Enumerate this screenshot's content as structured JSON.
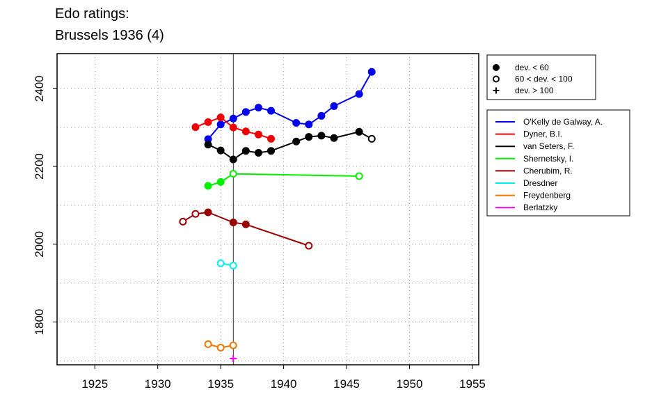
{
  "title_line1": "Edo ratings:",
  "title_line2": "Brussels 1936 (4)",
  "chart_data": {
    "type": "line",
    "title": "Edo ratings: Brussels 1936 (4)",
    "xlim": [
      1922,
      1955.5
    ],
    "ylim": [
      1690,
      2490
    ],
    "x_ticks": [
      1925,
      1930,
      1935,
      1940,
      1945,
      1950,
      1955
    ],
    "y_ticks": [
      1800,
      2000,
      2200,
      2400
    ],
    "grid": true,
    "vertical_line_x": 1936,
    "marker_legend": [
      {
        "marker": "filled",
        "label": "dev. < 60"
      },
      {
        "marker": "open",
        "label": "60 < dev. < 100"
      },
      {
        "marker": "plus",
        "label": "dev. > 100"
      }
    ],
    "series": [
      {
        "name": "O'Kelly de Galway, A.",
        "color": "#0000ee",
        "points": [
          {
            "x": 1934,
            "y": 2270,
            "m": "filled"
          },
          {
            "x": 1935,
            "y": 2308,
            "m": "filled"
          },
          {
            "x": 1936,
            "y": 2323,
            "m": "filled"
          },
          {
            "x": 1937,
            "y": 2340,
            "m": "filled"
          },
          {
            "x": 1938,
            "y": 2351,
            "m": "filled"
          },
          {
            "x": 1939,
            "y": 2343,
            "m": "filled"
          },
          {
            "x": 1941,
            "y": 2312,
            "m": "filled"
          },
          {
            "x": 1942,
            "y": 2308,
            "m": "filled"
          },
          {
            "x": 1943,
            "y": 2330,
            "m": "filled"
          },
          {
            "x": 1944,
            "y": 2355,
            "m": "filled"
          },
          {
            "x": 1946,
            "y": 2386,
            "m": "filled"
          },
          {
            "x": 1947,
            "y": 2443,
            "m": "filled"
          }
        ]
      },
      {
        "name": "Dyner, B.I.",
        "color": "#ee0000",
        "points": [
          {
            "x": 1933,
            "y": 2301,
            "m": "filled"
          },
          {
            "x": 1934,
            "y": 2314,
            "m": "filled"
          },
          {
            "x": 1935,
            "y": 2326,
            "m": "filled"
          },
          {
            "x": 1936,
            "y": 2300,
            "m": "filled"
          },
          {
            "x": 1937,
            "y": 2290,
            "m": "filled"
          },
          {
            "x": 1938,
            "y": 2282,
            "m": "filled"
          },
          {
            "x": 1939,
            "y": 2271,
            "m": "filled"
          }
        ]
      },
      {
        "name": "van Seters, F.",
        "color": "#000000",
        "points": [
          {
            "x": 1934,
            "y": 2256,
            "m": "filled"
          },
          {
            "x": 1935,
            "y": 2241,
            "m": "filled"
          },
          {
            "x": 1936,
            "y": 2218,
            "m": "filled"
          },
          {
            "x": 1937,
            "y": 2240,
            "m": "filled"
          },
          {
            "x": 1938,
            "y": 2235,
            "m": "filled"
          },
          {
            "x": 1939,
            "y": 2240,
            "m": "filled"
          },
          {
            "x": 1941,
            "y": 2264,
            "m": "filled"
          },
          {
            "x": 1942,
            "y": 2276,
            "m": "filled"
          },
          {
            "x": 1943,
            "y": 2279,
            "m": "filled"
          },
          {
            "x": 1944,
            "y": 2273,
            "m": "filled"
          },
          {
            "x": 1946,
            "y": 2289,
            "m": "filled"
          },
          {
            "x": 1947,
            "y": 2271,
            "m": "open"
          }
        ]
      },
      {
        "name": "Shernetsky, I.",
        "color": "#00ee00",
        "points": [
          {
            "x": 1934,
            "y": 2150,
            "m": "filled"
          },
          {
            "x": 1935,
            "y": 2160,
            "m": "filled"
          },
          {
            "x": 1936,
            "y": 2181,
            "m": "open"
          },
          {
            "x": 1946,
            "y": 2175,
            "m": "open"
          }
        ]
      },
      {
        "name": "Cherubim, R.",
        "color": "#990000",
        "points": [
          {
            "x": 1932,
            "y": 2058,
            "m": "open"
          },
          {
            "x": 1933,
            "y": 2078,
            "m": "open"
          },
          {
            "x": 1934,
            "y": 2082,
            "m": "filled"
          },
          {
            "x": 1936,
            "y": 2056,
            "m": "filled"
          },
          {
            "x": 1937,
            "y": 2051,
            "m": "filled"
          },
          {
            "x": 1942,
            "y": 1996,
            "m": "open"
          }
        ]
      },
      {
        "name": "Dresdner",
        "color": "#00eeee",
        "points": [
          {
            "x": 1935,
            "y": 1951,
            "m": "open"
          },
          {
            "x": 1936,
            "y": 1945,
            "m": "open"
          }
        ]
      },
      {
        "name": "Freydenberg",
        "color": "#ee7700",
        "points": [
          {
            "x": 1934,
            "y": 1743,
            "m": "open"
          },
          {
            "x": 1935,
            "y": 1734,
            "m": "open"
          },
          {
            "x": 1936,
            "y": 1740,
            "m": "open"
          }
        ]
      },
      {
        "name": "Berlatzky",
        "color": "#ee00ee",
        "points": [
          {
            "x": 1936,
            "y": 1706,
            "m": "plus"
          }
        ]
      }
    ]
  }
}
